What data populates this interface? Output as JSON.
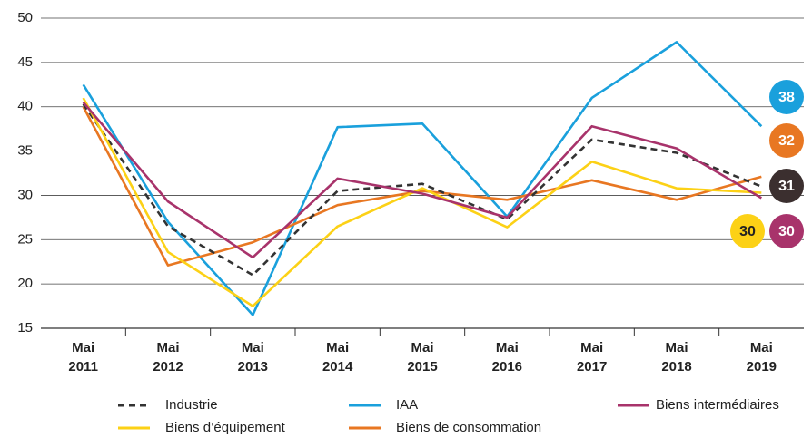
{
  "chart_data": {
    "type": "line",
    "categories": [
      "Mai 2011",
      "Mai 2012",
      "Mai 2013",
      "Mai 2014",
      "Mai 2015",
      "Mai 2016",
      "Mai 2017",
      "Mai 2018",
      "Mai 2019"
    ],
    "ylim": [
      15,
      50
    ],
    "yticks": [
      15,
      20,
      25,
      30,
      35,
      40,
      45,
      50
    ],
    "grid": true,
    "series": [
      {
        "name": "Industrie",
        "color": "#333333",
        "dashed": true,
        "values": [
          40.3,
          26.5,
          21,
          30.5,
          31.3,
          27.3,
          36.3,
          34.8,
          31
        ],
        "value_labels": [
          null,
          null,
          null,
          null,
          null,
          null,
          null,
          null,
          "31"
        ],
        "label_color": "#3b2f2f"
      },
      {
        "name": "IAA",
        "color": "#1aa0dc",
        "values": [
          42.5,
          27,
          16.5,
          37.7,
          38.1,
          27.6,
          41,
          47.3,
          37.8
        ],
        "value_labels": [
          null,
          null,
          null,
          null,
          null,
          null,
          null,
          null,
          "38"
        ]
      },
      {
        "name": "Biens intermédiaires",
        "color": "#a8336b",
        "values": [
          40.5,
          29.3,
          23,
          31.9,
          30.2,
          27.5,
          37.8,
          35.3,
          29.7
        ],
        "value_labels": [
          null,
          null,
          null,
          null,
          null,
          null,
          null,
          null,
          "30"
        ]
      },
      {
        "name": "Biens d’équipement",
        "color": "#fcd116",
        "values": [
          41,
          23.6,
          17.5,
          26.5,
          30.8,
          26.4,
          33.8,
          30.8,
          30.3
        ],
        "value_labels": [
          null,
          null,
          null,
          null,
          null,
          null,
          null,
          null,
          "30"
        ]
      },
      {
        "name": "Biens de consommation",
        "color": "#e87722",
        "values": [
          40,
          22.1,
          24.7,
          28.9,
          30.5,
          29.5,
          31.7,
          29.5,
          32.1
        ],
        "value_labels": [
          null,
          null,
          null,
          null,
          null,
          null,
          null,
          null,
          "32"
        ]
      }
    ]
  }
}
